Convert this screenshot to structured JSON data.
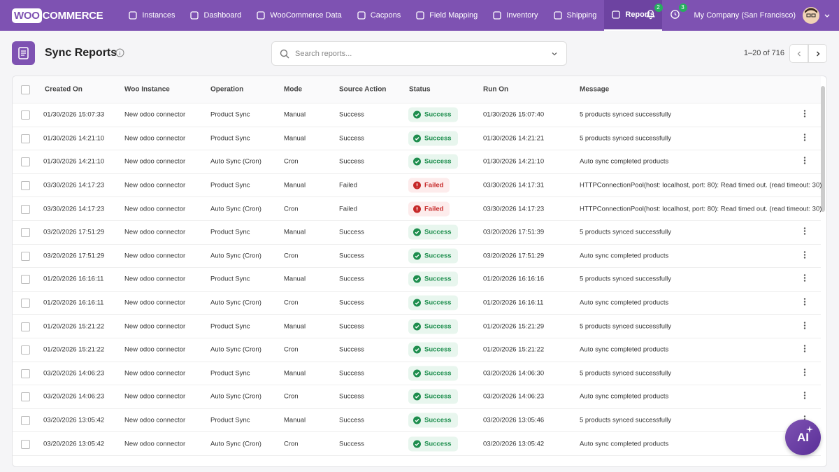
{
  "nav": {
    "logo_badge": "WOO",
    "logo_text": "COMMERCE",
    "items": [
      "Instances",
      "Dashboard",
      "WooCommerce Data",
      "Cacpons",
      "Field Mapping",
      "Inventory",
      "Shipping",
      "Reports"
    ],
    "notification_count": 2,
    "activity_count": 3,
    "company": "My Company (San Francisco)"
  },
  "header": {
    "title": "Sync Reports",
    "search_placeholder": "Search reports...",
    "pagination": "1–20 of 716"
  },
  "table": {
    "columns": [
      "Created On",
      "Woo Instance",
      "Operation",
      "Mode",
      "Source Action",
      "Status",
      "Run On",
      "Message"
    ],
    "rows": [
      [
        "01/30/2026 15:07:33",
        "New odoo connector",
        "Product Sync",
        "Manual",
        "Success",
        "Success",
        "01/30/2026 15:07:40",
        "5 products synced successfully"
      ],
      [
        "01/30/2026 14:21:10",
        "New odoo connector",
        "Product Sync",
        "Manual",
        "Success",
        "Success",
        "01/30/2026 14:21:21",
        "5 products synced successfully"
      ],
      [
        "01/30/2026 14:21:10",
        "New odoo connector",
        "Auto Sync (Cron)",
        "Cron",
        "Success",
        "Success",
        "01/30/2026 14:21:10",
        "Auto sync completed products"
      ],
      [
        "03/30/2026 14:17:23",
        "New odoo connector",
        "Product Sync",
        "Manual",
        "Failed",
        "Failed",
        "03/30/2026 14:17:31",
        "HTTPConnectionPool(host: localhost, port: 80): Read timed out. (read timeout: 30)"
      ],
      [
        "03/30/2026 14:17:23",
        "New odoo connector",
        "Auto Sync (Cron)",
        "Cron",
        "Failed",
        "Failed",
        "03/30/2026 14:17:23",
        "HTTPConnectionPool(host: localhost, port: 80): Read timed out. (read timeout: 30)"
      ],
      [
        "03/20/2026 17:51:29",
        "New odoo connector",
        "Product Sync",
        "Manual",
        "Success",
        "Success",
        "03/20/2026 17:51:39",
        "5 products synced successfully"
      ],
      [
        "03/20/2026 17:51:29",
        "New odoo connector",
        "Auto Sync (Cron)",
        "Cron",
        "Success",
        "Success",
        "03/20/2026 17:51:29",
        "Auto sync completed products"
      ],
      [
        "01/20/2026 16:16:11",
        "New odoo connector",
        "Product Sync",
        "Manual",
        "Success",
        "Success",
        "01/20/2026 16:16:16",
        "5 products synced successfully"
      ],
      [
        "01/20/2026 16:16:11",
        "New odoo connector",
        "Auto Sync (Cron)",
        "Cron",
        "Success",
        "Success",
        "01/20/2026 16:16:11",
        "Auto sync completed products"
      ],
      [
        "01/20/2026 15:21:22",
        "New odoo connector",
        "Product Sync",
        "Manual",
        "Success",
        "Success",
        "01/20/2026 15:21:29",
        "5 products synced successfully"
      ],
      [
        "01/20/2026 15:21:22",
        "New odoo connector",
        "Auto Sync (Cron)",
        "Cron",
        "Success",
        "Success",
        "01/20/2026 15:21:22",
        "Auto sync completed products"
      ],
      [
        "03/20/2026 14:06:23",
        "New odoo connector",
        "Product Sync",
        "Manual",
        "Success",
        "Success",
        "03/20/2026 14:06:30",
        "5 products synced successfully"
      ],
      [
        "03/20/2026 14:06:23",
        "New odoo connector",
        "Auto Sync (Cron)",
        "Cron",
        "Success",
        "Success",
        "03/20/2026 14:06:23",
        "Auto sync completed products"
      ],
      [
        "03/20/2026 13:05:42",
        "New odoo connector",
        "Product Sync",
        "Manual",
        "Success",
        "Success",
        "03/20/2026 13:05:46",
        "5 products synced successfully"
      ],
      [
        "03/20/2026 13:05:42",
        "New odoo connector",
        "Auto Sync (Cron)",
        "Cron",
        "Success",
        "Success",
        "03/20/2026 13:05:42",
        "Auto sync completed products"
      ]
    ]
  },
  "assistant_button": "AI"
}
